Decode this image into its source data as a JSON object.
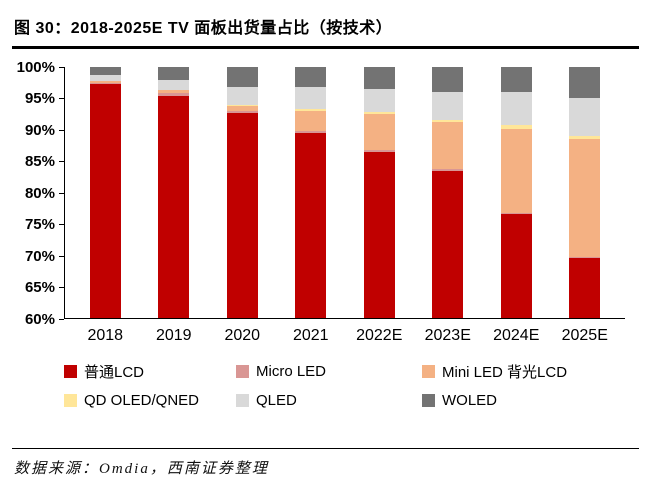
{
  "header": {
    "title": "图 30：2018-2025E TV 面板出货量占比（按技术）"
  },
  "footer": {
    "source": "数据来源：Omdia，西南证券整理"
  },
  "chart_data": {
    "type": "bar",
    "stacked": true,
    "title": "2018-2025E TV 面板出货量占比（按技术）",
    "xlabel": "",
    "ylabel": "",
    "ylim": [
      60,
      100
    ],
    "ytick_step": 5,
    "ytick_suffix": "%",
    "grid": false,
    "legend_position": "bottom",
    "categories": [
      "2018",
      "2019",
      "2020",
      "2021",
      "2022E",
      "2023E",
      "2024E",
      "2025E"
    ],
    "series": [
      {
        "name": "普通LCD",
        "color": "#C00000",
        "values": [
          97.3,
          95.4,
          92.6,
          89.5,
          86.5,
          83.5,
          76.5,
          69.5
        ]
      },
      {
        "name": "Micro LED",
        "color": "#D99694",
        "values": [
          0.2,
          0.5,
          0.4,
          0.3,
          0.2,
          0.2,
          0.2,
          0.2
        ]
      },
      {
        "name": "Mini LED 背光LCD",
        "color": "#F4B183",
        "values": [
          0.3,
          0.4,
          0.8,
          3.2,
          5.8,
          7.5,
          13.5,
          18.8
        ]
      },
      {
        "name": "QD OLED/QNED",
        "color": "#FFE699",
        "values": [
          0.0,
          0.0,
          0.2,
          0.3,
          0.3,
          0.4,
          0.5,
          0.5
        ]
      },
      {
        "name": "QLED",
        "color": "#D9D9D9",
        "values": [
          0.9,
          1.6,
          2.8,
          3.5,
          3.7,
          4.4,
          5.3,
          6.0
        ]
      },
      {
        "name": "WOLED",
        "color": "#737373",
        "values": [
          1.3,
          2.1,
          3.2,
          3.2,
          3.5,
          4.0,
          4.0,
          5.0
        ]
      }
    ],
    "legend_rows": [
      [
        "普通LCD",
        "Micro LED",
        "Mini LED 背光LCD"
      ],
      [
        "QD OLED/QNED",
        "QLED",
        "WOLED"
      ]
    ]
  }
}
